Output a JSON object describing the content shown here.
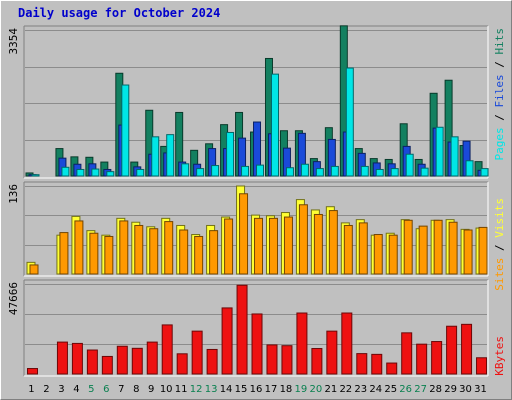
{
  "title": "Daily usage for October 2024",
  "colors": {
    "pages": "#00e6e6",
    "files": "#1a4ad9",
    "hits": "#138060",
    "visits": "#ffff33",
    "sites": "#ff9900",
    "kbytes": "#ee1111",
    "title": "#0000cc",
    "weekend": "#0a8050"
  },
  "chart_data": [
    {
      "type": "bar",
      "title": "Daily usage for October 2024",
      "ylabel": "Pages / Files / Hits",
      "ylim": [
        0,
        3354
      ],
      "y_tick_label": "3354",
      "grid": true,
      "categories": [
        "1",
        "2",
        "3",
        "4",
        "5",
        "6",
        "7",
        "8",
        "9",
        "10",
        "11",
        "12",
        "13",
        "14",
        "15",
        "16",
        "17",
        "18",
        "19",
        "20",
        "21",
        "22",
        "23",
        "24",
        "25",
        "26",
        "27",
        "28",
        "29",
        "30",
        "31"
      ],
      "weekend_days": [
        "5",
        "6",
        "12",
        "13",
        "19",
        "20",
        "26",
        "27"
      ],
      "series": [
        {
          "name": "Hits",
          "values": [
            70,
            0,
            630,
            440,
            430,
            320,
            2360,
            320,
            1510,
            680,
            1460,
            590,
            740,
            1180,
            1460,
            1010,
            2700,
            1040,
            1040,
            400,
            1110,
            3450,
            630,
            400,
            380,
            1200,
            380,
            1900,
            2200,
            700,
            330
          ]
        },
        {
          "name": "Files",
          "values": [
            30,
            0,
            410,
            270,
            280,
            150,
            1170,
            210,
            500,
            530,
            320,
            270,
            630,
            630,
            870,
            1240,
            970,
            640,
            980,
            330,
            840,
            1010,
            520,
            300,
            280,
            680,
            270,
            1100,
            780,
            800,
            130
          ]
        },
        {
          "name": "Pages",
          "values": [
            30,
            0,
            200,
            150,
            160,
            100,
            2090,
            150,
            900,
            950,
            280,
            170,
            240,
            1000,
            220,
            250,
            2340,
            190,
            270,
            170,
            220,
            2480,
            220,
            150,
            170,
            500,
            180,
            1120,
            900,
            350,
            170
          ]
        }
      ]
    },
    {
      "type": "bar",
      "ylabel": "Sites / Visits",
      "ylim": [
        0,
        136
      ],
      "y_tick_label": "136",
      "grid": true,
      "categories": [
        "1",
        "2",
        "3",
        "4",
        "5",
        "6",
        "7",
        "8",
        "9",
        "10",
        "11",
        "12",
        "13",
        "14",
        "15",
        "16",
        "17",
        "18",
        "19",
        "20",
        "21",
        "22",
        "23",
        "24",
        "25",
        "26",
        "27",
        "28",
        "29",
        "30",
        "31"
      ],
      "series": [
        {
          "name": "Visits",
          "values": [
            18,
            0,
            60,
            89,
            67,
            60,
            86,
            80,
            73,
            86,
            75,
            61,
            75,
            88,
            136,
            91,
            90,
            95,
            115,
            99,
            104,
            79,
            84,
            60,
            63,
            84,
            70,
            83,
            84,
            69,
            71
          ]
        },
        {
          "name": "Sites",
          "values": [
            14,
            0,
            64,
            82,
            63,
            58,
            82,
            75,
            70,
            81,
            68,
            58,
            67,
            85,
            124,
            86,
            86,
            88,
            107,
            92,
            98,
            75,
            79,
            61,
            60,
            83,
            74,
            83,
            80,
            68,
            72
          ]
        }
      ]
    },
    {
      "type": "bar",
      "ylabel": "KBytes",
      "ylim": [
        0,
        47666
      ],
      "y_tick_label": "47666",
      "grid": true,
      "categories": [
        "1",
        "2",
        "3",
        "4",
        "5",
        "6",
        "7",
        "8",
        "9",
        "10",
        "11",
        "12",
        "13",
        "14",
        "15",
        "16",
        "17",
        "18",
        "19",
        "20",
        "21",
        "22",
        "23",
        "24",
        "25",
        "26",
        "27",
        "28",
        "29",
        "30",
        "31"
      ],
      "series": [
        {
          "name": "KBytes",
          "values": [
            2900,
            0,
            16900,
            16200,
            12700,
            9300,
            14700,
            13600,
            16900,
            26000,
            10700,
            22700,
            13000,
            35000,
            47000,
            31800,
            15400,
            15000,
            32300,
            13500,
            22700,
            32300,
            10800,
            10400,
            5800,
            21800,
            15800,
            17200,
            25300,
            26300,
            8600
          ]
        }
      ]
    }
  ]
}
